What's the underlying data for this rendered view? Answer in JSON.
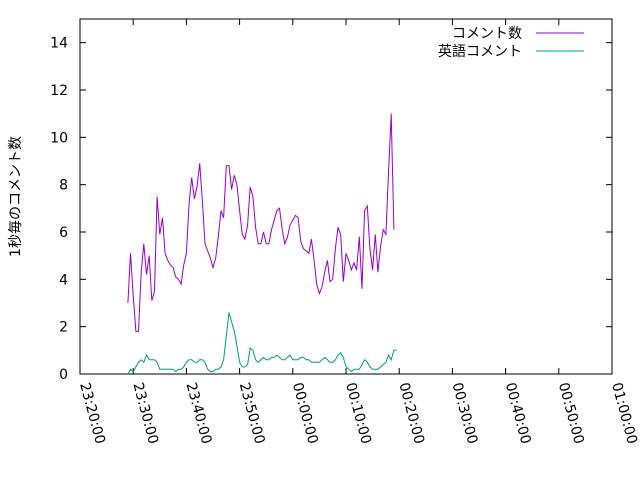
{
  "chart_data": {
    "type": "line",
    "ylabel": "1秒毎のコメント数",
    "xlabel": "",
    "title": "",
    "legend_position": "top-right",
    "grid": false,
    "xlim": [
      "23:20:00",
      "01:00:00"
    ],
    "ylim": [
      0,
      15
    ],
    "x_ticks": [
      "23:20:00",
      "23:30:00",
      "23:40:00",
      "23:50:00",
      "00:00:00",
      "00:10:00",
      "00:20:00",
      "00:30:00",
      "00:40:00",
      "00:50:00",
      "01:00:00"
    ],
    "y_ticks": [
      "0",
      "2",
      "4",
      "6",
      "8",
      "10",
      "12",
      "14"
    ],
    "series": [
      {
        "name": "コメント数",
        "color": "#9400d3",
        "points": [
          [
            "23:29:00",
            3.0
          ],
          [
            "23:29:30",
            5.1
          ],
          [
            "23:30:00",
            3.3
          ],
          [
            "23:30:30",
            1.8
          ],
          [
            "23:31:00",
            1.8
          ],
          [
            "23:31:30",
            4.3
          ],
          [
            "23:32:00",
            5.5
          ],
          [
            "23:32:30",
            4.2
          ],
          [
            "23:33:00",
            5.0
          ],
          [
            "23:33:30",
            3.1
          ],
          [
            "23:34:00",
            3.5
          ],
          [
            "23:34:30",
            7.5
          ],
          [
            "23:35:00",
            5.9
          ],
          [
            "23:35:30",
            6.6
          ],
          [
            "23:36:00",
            5.1
          ],
          [
            "23:36:30",
            4.8
          ],
          [
            "23:37:00",
            4.6
          ],
          [
            "23:37:30",
            4.5
          ],
          [
            "23:38:00",
            4.1
          ],
          [
            "23:38:30",
            4.0
          ],
          [
            "23:39:00",
            3.8
          ],
          [
            "23:39:30",
            4.6
          ],
          [
            "23:40:00",
            5.1
          ],
          [
            "23:40:30",
            7.2
          ],
          [
            "23:41:00",
            8.3
          ],
          [
            "23:41:30",
            7.4
          ],
          [
            "23:42:00",
            7.9
          ],
          [
            "23:42:30",
            8.9
          ],
          [
            "23:43:00",
            7.3
          ],
          [
            "23:43:30",
            5.5
          ],
          [
            "23:44:00",
            5.2
          ],
          [
            "23:44:30",
            4.9
          ],
          [
            "23:45:00",
            4.5
          ],
          [
            "23:45:30",
            4.9
          ],
          [
            "23:46:00",
            5.8
          ],
          [
            "23:46:30",
            6.9
          ],
          [
            "23:47:00",
            6.6
          ],
          [
            "23:47:30",
            8.8
          ],
          [
            "23:48:00",
            8.8
          ],
          [
            "23:48:30",
            7.8
          ],
          [
            "23:49:00",
            8.4
          ],
          [
            "23:49:30",
            8.0
          ],
          [
            "23:50:00",
            6.9
          ],
          [
            "23:50:30",
            5.9
          ],
          [
            "23:51:00",
            5.7
          ],
          [
            "23:51:30",
            6.3
          ],
          [
            "23:52:00",
            7.9
          ],
          [
            "23:52:30",
            7.5
          ],
          [
            "23:53:00",
            6.2
          ],
          [
            "23:53:30",
            5.5
          ],
          [
            "23:54:00",
            5.5
          ],
          [
            "23:54:30",
            6.0
          ],
          [
            "23:55:00",
            5.5
          ],
          [
            "23:55:30",
            5.5
          ],
          [
            "23:56:00",
            6.1
          ],
          [
            "23:56:30",
            6.5
          ],
          [
            "23:57:00",
            6.9
          ],
          [
            "23:57:30",
            7.0
          ],
          [
            "23:58:00",
            6.1
          ],
          [
            "23:58:30",
            5.5
          ],
          [
            "23:59:00",
            5.8
          ],
          [
            "23:59:30",
            6.3
          ],
          [
            "00:00:00",
            6.5
          ],
          [
            "00:00:30",
            6.7
          ],
          [
            "00:01:00",
            6.6
          ],
          [
            "00:01:30",
            5.6
          ],
          [
            "00:02:00",
            5.3
          ],
          [
            "00:02:30",
            5.2
          ],
          [
            "00:03:00",
            5.1
          ],
          [
            "00:03:30",
            5.7
          ],
          [
            "00:04:00",
            4.8
          ],
          [
            "00:04:30",
            3.8
          ],
          [
            "00:05:00",
            3.4
          ],
          [
            "00:05:30",
            3.7
          ],
          [
            "00:06:00",
            4.3
          ],
          [
            "00:06:30",
            4.8
          ],
          [
            "00:07:00",
            3.9
          ],
          [
            "00:07:30",
            4.0
          ],
          [
            "00:08:00",
            5.3
          ],
          [
            "00:08:30",
            6.2
          ],
          [
            "00:09:00",
            5.9
          ],
          [
            "00:09:30",
            3.9
          ],
          [
            "00:10:00",
            5.1
          ],
          [
            "00:10:30",
            4.8
          ],
          [
            "00:11:00",
            4.4
          ],
          [
            "00:11:30",
            4.7
          ],
          [
            "00:12:00",
            4.4
          ],
          [
            "00:12:30",
            5.8
          ],
          [
            "00:13:00",
            3.6
          ],
          [
            "00:13:30",
            6.9
          ],
          [
            "00:14:00",
            7.1
          ],
          [
            "00:14:30",
            5.3
          ],
          [
            "00:15:00",
            4.4
          ],
          [
            "00:15:30",
            5.9
          ],
          [
            "00:16:00",
            4.3
          ],
          [
            "00:16:30",
            5.4
          ],
          [
            "00:17:00",
            6.1
          ],
          [
            "00:17:30",
            5.9
          ],
          [
            "00:18:00",
            8.6
          ],
          [
            "00:18:30",
            11.0
          ],
          [
            "00:19:00",
            6.1
          ]
        ]
      },
      {
        "name": "英語コメント",
        "color": "#009e73",
        "points": [
          [
            "23:29:00",
            0.0
          ],
          [
            "23:29:30",
            0.2
          ],
          [
            "23:30:00",
            0.1
          ],
          [
            "23:30:30",
            0.3
          ],
          [
            "23:31:00",
            0.5
          ],
          [
            "23:31:30",
            0.6
          ],
          [
            "23:32:00",
            0.5
          ],
          [
            "23:32:30",
            0.8
          ],
          [
            "23:33:00",
            0.6
          ],
          [
            "23:33:30",
            0.6
          ],
          [
            "23:34:00",
            0.6
          ],
          [
            "23:34:30",
            0.5
          ],
          [
            "23:35:00",
            0.2
          ],
          [
            "23:35:30",
            0.2
          ],
          [
            "23:36:00",
            0.2
          ],
          [
            "23:36:30",
            0.2
          ],
          [
            "23:37:00",
            0.2
          ],
          [
            "23:37:30",
            0.2
          ],
          [
            "23:38:00",
            0.1
          ],
          [
            "23:38:30",
            0.2
          ],
          [
            "23:39:00",
            0.2
          ],
          [
            "23:39:30",
            0.3
          ],
          [
            "23:40:00",
            0.5
          ],
          [
            "23:40:30",
            0.6
          ],
          [
            "23:41:00",
            0.6
          ],
          [
            "23:41:30",
            0.5
          ],
          [
            "23:42:00",
            0.5
          ],
          [
            "23:42:30",
            0.6
          ],
          [
            "23:43:00",
            0.6
          ],
          [
            "23:43:30",
            0.5
          ],
          [
            "23:44:00",
            0.2
          ],
          [
            "23:44:30",
            0.1
          ],
          [
            "23:45:00",
            0.1
          ],
          [
            "23:45:30",
            0.2
          ],
          [
            "23:46:00",
            0.2
          ],
          [
            "23:46:30",
            0.3
          ],
          [
            "23:47:00",
            0.6
          ],
          [
            "23:47:30",
            1.6
          ],
          [
            "23:48:00",
            2.6
          ],
          [
            "23:48:30",
            2.2
          ],
          [
            "23:49:00",
            1.8
          ],
          [
            "23:49:30",
            1.2
          ],
          [
            "23:50:00",
            0.5
          ],
          [
            "23:50:30",
            0.3
          ],
          [
            "23:51:00",
            0.3
          ],
          [
            "23:51:30",
            0.4
          ],
          [
            "23:52:00",
            1.1
          ],
          [
            "23:52:30",
            1.0
          ],
          [
            "23:53:00",
            0.6
          ],
          [
            "23:53:30",
            0.5
          ],
          [
            "23:54:00",
            0.6
          ],
          [
            "23:54:30",
            0.7
          ],
          [
            "23:55:00",
            0.6
          ],
          [
            "23:55:30",
            0.6
          ],
          [
            "23:56:00",
            0.7
          ],
          [
            "23:56:30",
            0.7
          ],
          [
            "23:57:00",
            0.8
          ],
          [
            "23:57:30",
            0.7
          ],
          [
            "23:58:00",
            0.6
          ],
          [
            "23:58:30",
            0.6
          ],
          [
            "23:59:00",
            0.7
          ],
          [
            "23:59:30",
            0.8
          ],
          [
            "00:00:00",
            0.6
          ],
          [
            "00:00:30",
            0.6
          ],
          [
            "00:01:00",
            0.6
          ],
          [
            "00:01:30",
            0.7
          ],
          [
            "00:02:00",
            0.7
          ],
          [
            "00:02:30",
            0.6
          ],
          [
            "00:03:00",
            0.6
          ],
          [
            "00:03:30",
            0.5
          ],
          [
            "00:04:00",
            0.5
          ],
          [
            "00:04:30",
            0.5
          ],
          [
            "00:05:00",
            0.5
          ],
          [
            "00:05:30",
            0.6
          ],
          [
            "00:06:00",
            0.7
          ],
          [
            "00:06:30",
            0.6
          ],
          [
            "00:07:00",
            0.5
          ],
          [
            "00:07:30",
            0.5
          ],
          [
            "00:08:00",
            0.6
          ],
          [
            "00:08:30",
            0.8
          ],
          [
            "00:09:00",
            0.9
          ],
          [
            "00:09:30",
            0.7
          ],
          [
            "00:10:00",
            0.3
          ],
          [
            "00:10:30",
            0.2
          ],
          [
            "00:11:00",
            0.1
          ],
          [
            "00:11:30",
            0.2
          ],
          [
            "00:12:00",
            0.2
          ],
          [
            "00:12:30",
            0.2
          ],
          [
            "00:13:00",
            0.4
          ],
          [
            "00:13:30",
            0.6
          ],
          [
            "00:14:00",
            0.5
          ],
          [
            "00:14:30",
            0.3
          ],
          [
            "00:15:00",
            0.2
          ],
          [
            "00:15:30",
            0.2
          ],
          [
            "00:16:00",
            0.2
          ],
          [
            "00:16:30",
            0.3
          ],
          [
            "00:17:00",
            0.4
          ],
          [
            "00:17:30",
            0.5
          ],
          [
            "00:18:00",
            0.8
          ],
          [
            "00:18:30",
            0.6
          ],
          [
            "00:19:00",
            1.0
          ],
          [
            "00:19:30",
            1.0
          ]
        ]
      }
    ]
  }
}
